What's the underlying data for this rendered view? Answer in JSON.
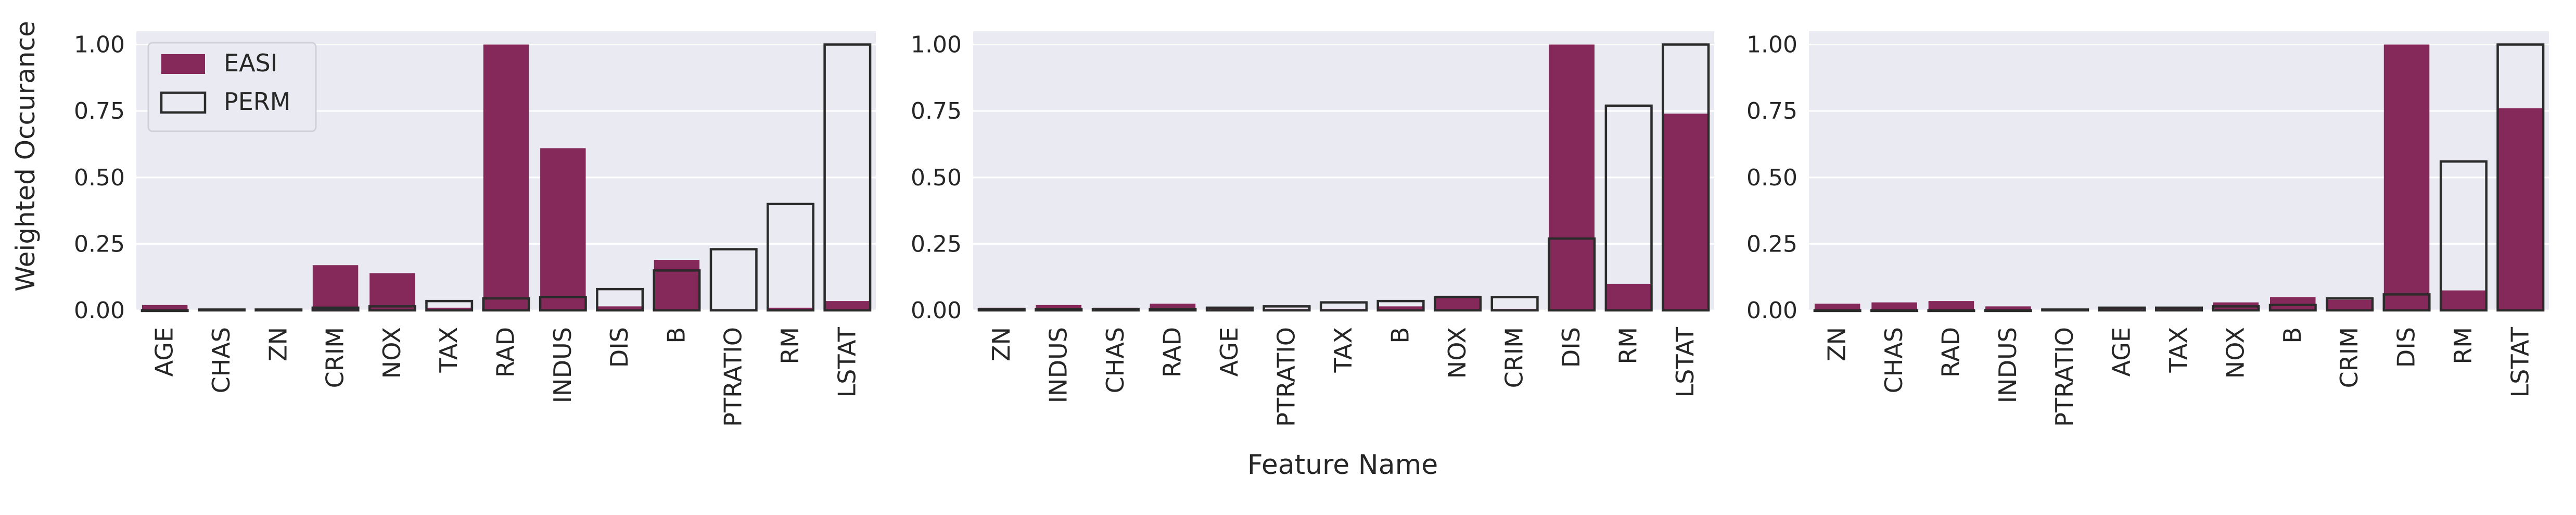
{
  "figure": {
    "ylabel": "Weighted Occurance",
    "xlabel": "Feature Name",
    "legend": {
      "position": "upper-left",
      "items": [
        {
          "label": "EASI",
          "style": "filled"
        },
        {
          "label": "PERM",
          "style": "outline"
        }
      ]
    },
    "colors": {
      "easi": "#85295a",
      "perm_edge": "#2b2b2b",
      "axes_bg": "#eaeaf2",
      "grid": "#ffffff"
    },
    "y_ticks": [
      "0.00",
      "0.25",
      "0.50",
      "0.75",
      "1.00"
    ]
  },
  "chart_data": [
    {
      "type": "bar",
      "categories": [
        "AGE",
        "CHAS",
        "ZN",
        "CRIM",
        "NOX",
        "TAX",
        "RAD",
        "INDUS",
        "DIS",
        "B",
        "PTRATIO",
        "RM",
        "LSTAT"
      ],
      "series": [
        {
          "name": "EASI",
          "values": [
            0.02,
            0.005,
            0.005,
            0.17,
            0.14,
            0.01,
            1.0,
            0.61,
            0.015,
            0.19,
            0.0,
            0.01,
            0.035
          ]
        },
        {
          "name": "PERM",
          "values": [
            0.0,
            0.003,
            0.003,
            0.01,
            0.015,
            0.035,
            0.045,
            0.05,
            0.08,
            0.15,
            0.23,
            0.4,
            1.0
          ]
        }
      ],
      "ylim": [
        0,
        1.05
      ],
      "grid": true,
      "legend": "upper-left"
    },
    {
      "type": "bar",
      "categories": [
        "ZN",
        "INDUS",
        "CHAS",
        "RAD",
        "AGE",
        "PTRATIO",
        "TAX",
        "B",
        "NOX",
        "CRIM",
        "DIS",
        "RM",
        "LSTAT"
      ],
      "series": [
        {
          "name": "EASI",
          "values": [
            0.01,
            0.02,
            0.01,
            0.025,
            0.005,
            0.005,
            0.005,
            0.015,
            0.055,
            0.005,
            1.0,
            0.1,
            0.74
          ]
        },
        {
          "name": "PERM",
          "values": [
            0.005,
            0.005,
            0.005,
            0.005,
            0.01,
            0.015,
            0.03,
            0.035,
            0.05,
            0.05,
            0.27,
            0.77,
            1.0
          ]
        }
      ],
      "ylim": [
        0,
        1.05
      ],
      "grid": true
    },
    {
      "type": "bar",
      "categories": [
        "ZN",
        "CHAS",
        "RAD",
        "INDUS",
        "PTRATIO",
        "AGE",
        "TAX",
        "NOX",
        "B",
        "CRIM",
        "DIS",
        "RM",
        "LSTAT"
      ],
      "series": [
        {
          "name": "EASI",
          "values": [
            0.025,
            0.03,
            0.035,
            0.015,
            0.005,
            0.005,
            0.005,
            0.03,
            0.05,
            0.04,
            1.0,
            0.075,
            0.76
          ]
        },
        {
          "name": "PERM",
          "values": [
            0.0,
            0.0,
            0.0,
            0.0,
            0.003,
            0.01,
            0.01,
            0.015,
            0.02,
            0.045,
            0.06,
            0.56,
            1.0
          ]
        }
      ],
      "ylim": [
        0,
        1.05
      ],
      "grid": true
    }
  ]
}
